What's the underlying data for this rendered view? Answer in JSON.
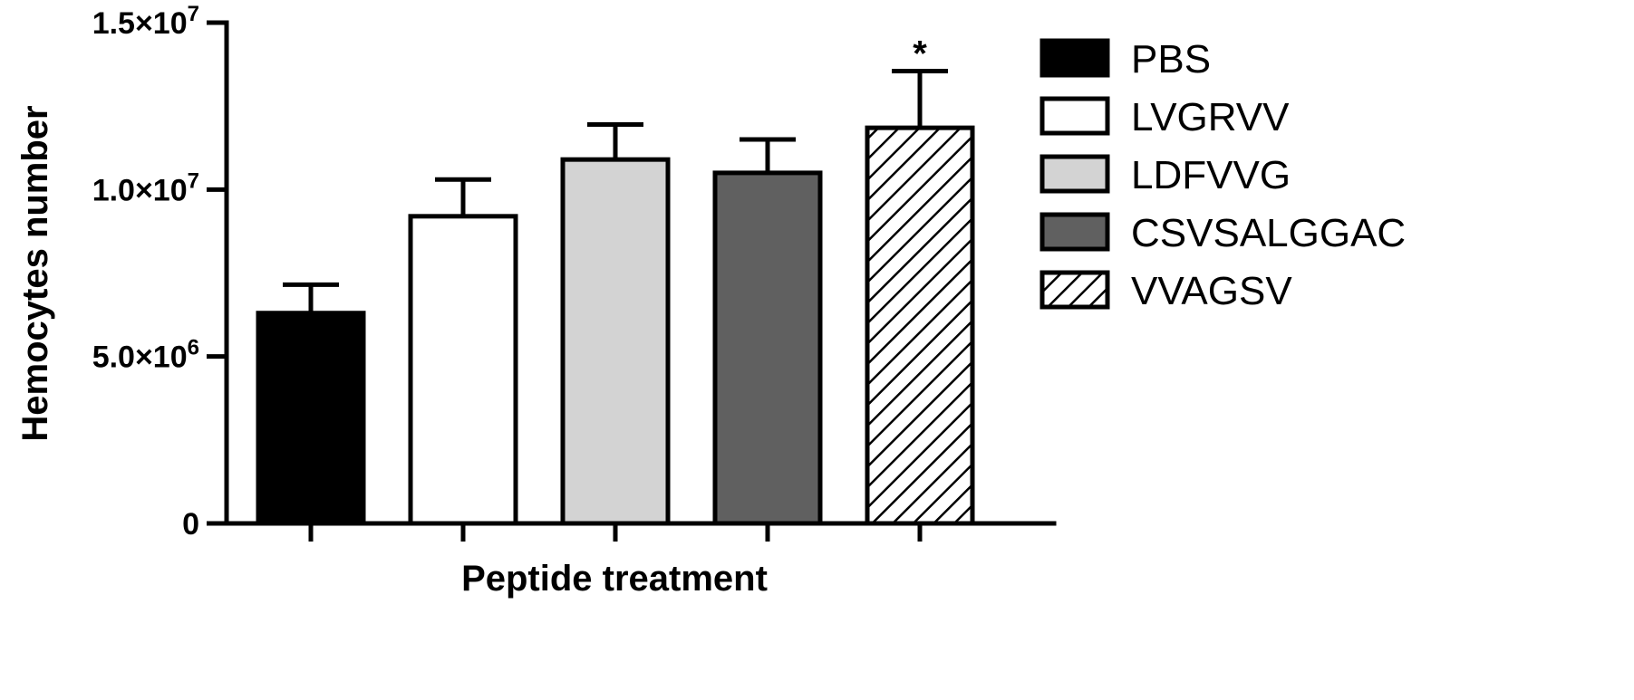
{
  "chart_data": {
    "type": "bar",
    "title": "",
    "xlabel": "Peptide treatment",
    "ylabel": "Hemocytes number",
    "ylim": [
      0,
      15000000
    ],
    "yticks": [
      {
        "value": 0,
        "mantissa": "0",
        "exponent": ""
      },
      {
        "value": 5000000,
        "mantissa": "5.0×10",
        "exponent": "6"
      },
      {
        "value": 10000000,
        "mantissa": "1.0×10",
        "exponent": "7"
      },
      {
        "value": 15000000,
        "mantissa": "1.5×10",
        "exponent": "7"
      }
    ],
    "categories": [
      "PBS",
      "LVGRVV",
      "LDFVVG",
      "CSVSALGGAC",
      "VVAGSV"
    ],
    "values": [
      6300000,
      9200000,
      10900000,
      10500000,
      11850000
    ],
    "errors": [
      850000,
      1100000,
      1050000,
      1000000,
      1700000
    ],
    "colors": [
      "#000000",
      "#ffffff",
      "#d3d3d3",
      "#606060",
      "hatch"
    ],
    "annotations": [
      {
        "category": "VVAGSV",
        "text": "*"
      }
    ],
    "legend": {
      "position": "right",
      "entries": [
        "PBS",
        "LVGRVV",
        "LDFVVG",
        "CSVSALGGAC",
        "VVAGSV"
      ]
    },
    "grid": false
  }
}
